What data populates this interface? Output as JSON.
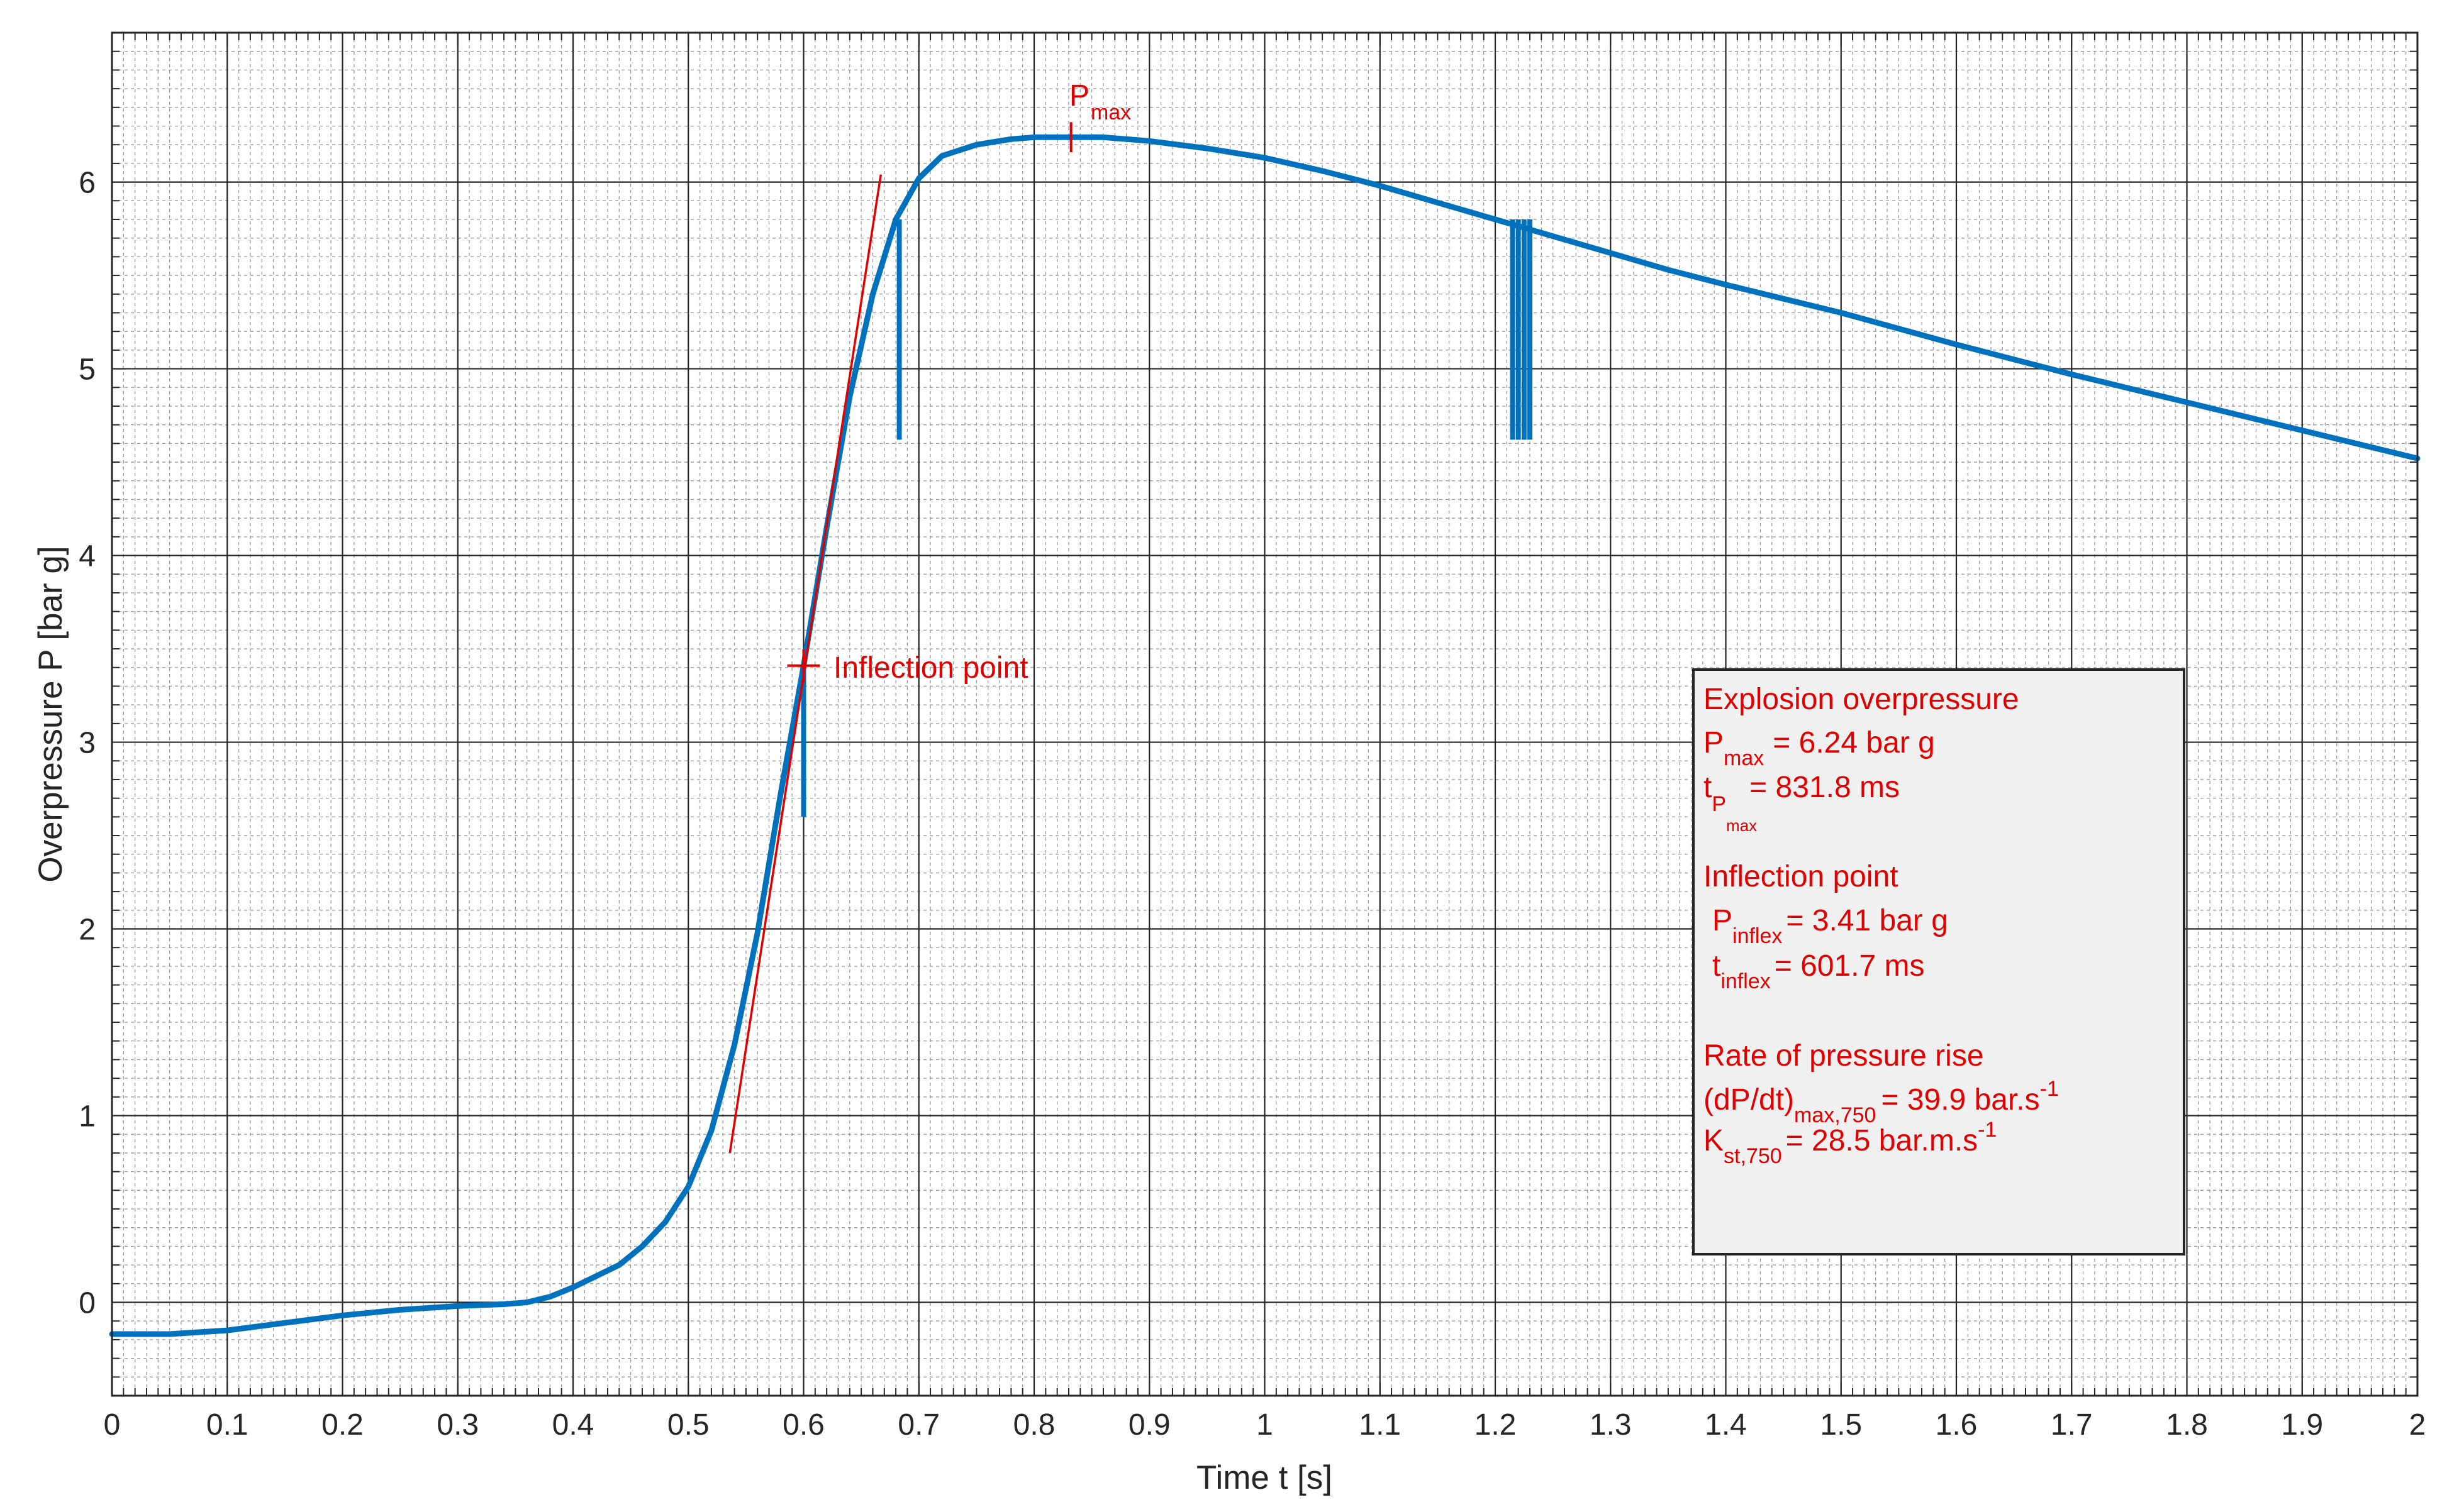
{
  "chart_data": {
    "type": "line",
    "title": "",
    "xlabel": "Time t [s]",
    "ylabel": "Overpressure P [bar g]",
    "xlim": [
      0,
      2
    ],
    "ylim": [
      -0.5,
      6.8
    ],
    "x_ticks": [
      "0",
      "0.1",
      "0.2",
      "0.3",
      "0.4",
      "0.5",
      "0.6",
      "0.7",
      "0.8",
      "0.9",
      "1",
      "1.1",
      "1.2",
      "1.3",
      "1.4",
      "1.5",
      "1.6",
      "1.7",
      "1.8",
      "1.9",
      "2"
    ],
    "y_ticks": [
      "0",
      "1",
      "2",
      "3",
      "4",
      "5",
      "6"
    ],
    "grid": true,
    "minor_grid": true,
    "colors": {
      "series": "#0072bd",
      "annotation": "#e00000",
      "box_background": "#f0f0f0"
    },
    "series": [
      {
        "x": [
          0,
          0.05,
          0.1,
          0.15,
          0.2,
          0.25,
          0.3,
          0.34,
          0.36,
          0.38,
          0.4,
          0.42,
          0.44,
          0.46,
          0.48,
          0.5,
          0.52,
          0.54,
          0.56,
          0.58,
          0.6,
          0.62,
          0.64,
          0.66,
          0.68,
          0.7,
          0.72,
          0.75,
          0.78,
          0.8,
          0.832,
          0.86,
          0.9,
          0.95,
          1.0,
          1.05,
          1.1,
          1.15,
          1.2,
          1.25,
          1.3,
          1.35,
          1.4,
          1.5,
          1.6,
          1.7,
          1.8,
          1.9,
          2.0
        ],
        "y": [
          -0.17,
          -0.17,
          -0.15,
          -0.11,
          -0.07,
          -0.04,
          -0.02,
          -0.01,
          0.0,
          0.03,
          0.08,
          0.14,
          0.2,
          0.3,
          0.43,
          0.62,
          0.92,
          1.38,
          1.98,
          2.72,
          3.41,
          4.15,
          4.85,
          5.4,
          5.8,
          6.02,
          6.14,
          6.2,
          6.23,
          6.24,
          6.24,
          6.24,
          6.22,
          6.18,
          6.13,
          6.06,
          5.98,
          5.89,
          5.8,
          5.71,
          5.62,
          5.53,
          5.45,
          5.3,
          5.13,
          4.97,
          4.82,
          4.67,
          4.52
        ]
      }
    ],
    "spikes": [
      {
        "x": 0.6,
        "from": 3.41,
        "to": 2.6
      },
      {
        "x": 0.683,
        "from": 5.8,
        "to": 4.62
      },
      {
        "x": 1.215,
        "from": 5.8,
        "to": 4.62
      },
      {
        "x": 1.22,
        "from": 5.8,
        "to": 4.62
      },
      {
        "x": 1.225,
        "from": 5.8,
        "to": 4.62
      },
      {
        "x": 1.23,
        "from": 5.8,
        "to": 4.62
      }
    ],
    "tangent_line": {
      "x": [
        0.536,
        0.667
      ],
      "y": [
        0.8,
        6.04
      ]
    },
    "markers": {
      "pmax": {
        "x": 0.832,
        "y": 6.24,
        "label_main": "P",
        "label_sub": "max"
      },
      "inflection": {
        "x": 0.6,
        "y": 3.41,
        "label": "Inflection point"
      }
    }
  },
  "info_box": {
    "section1_title": "Explosion overpressure",
    "pmax_sym": "P",
    "pmax_sub": "max",
    "pmax_value": "= 6.24 bar g",
    "tpmax_sym": "t",
    "tpmax_sub": "P",
    "tpmax_subsub": "max",
    "tpmax_value": "= 831.8 ms",
    "section2_title": "Inflection point",
    "pinflex_sym": "P",
    "pinflex_sub": "inflex",
    "pinflex_value": "= 3.41 bar g",
    "tinflex_sym": "t",
    "tinflex_sub": "inflex",
    "tinflex_value": "= 601.7 ms",
    "section3_title": "Rate of pressure rise",
    "rate_sym": "(dP/dt)",
    "rate_sub": "max,750",
    "rate_value": "= 39.9 bar.s",
    "rate_exp": "-1",
    "kst_sym": "K",
    "kst_sub": "st,750",
    "kst_value": "= 28.5 bar.m.s",
    "kst_exp": "-1"
  }
}
